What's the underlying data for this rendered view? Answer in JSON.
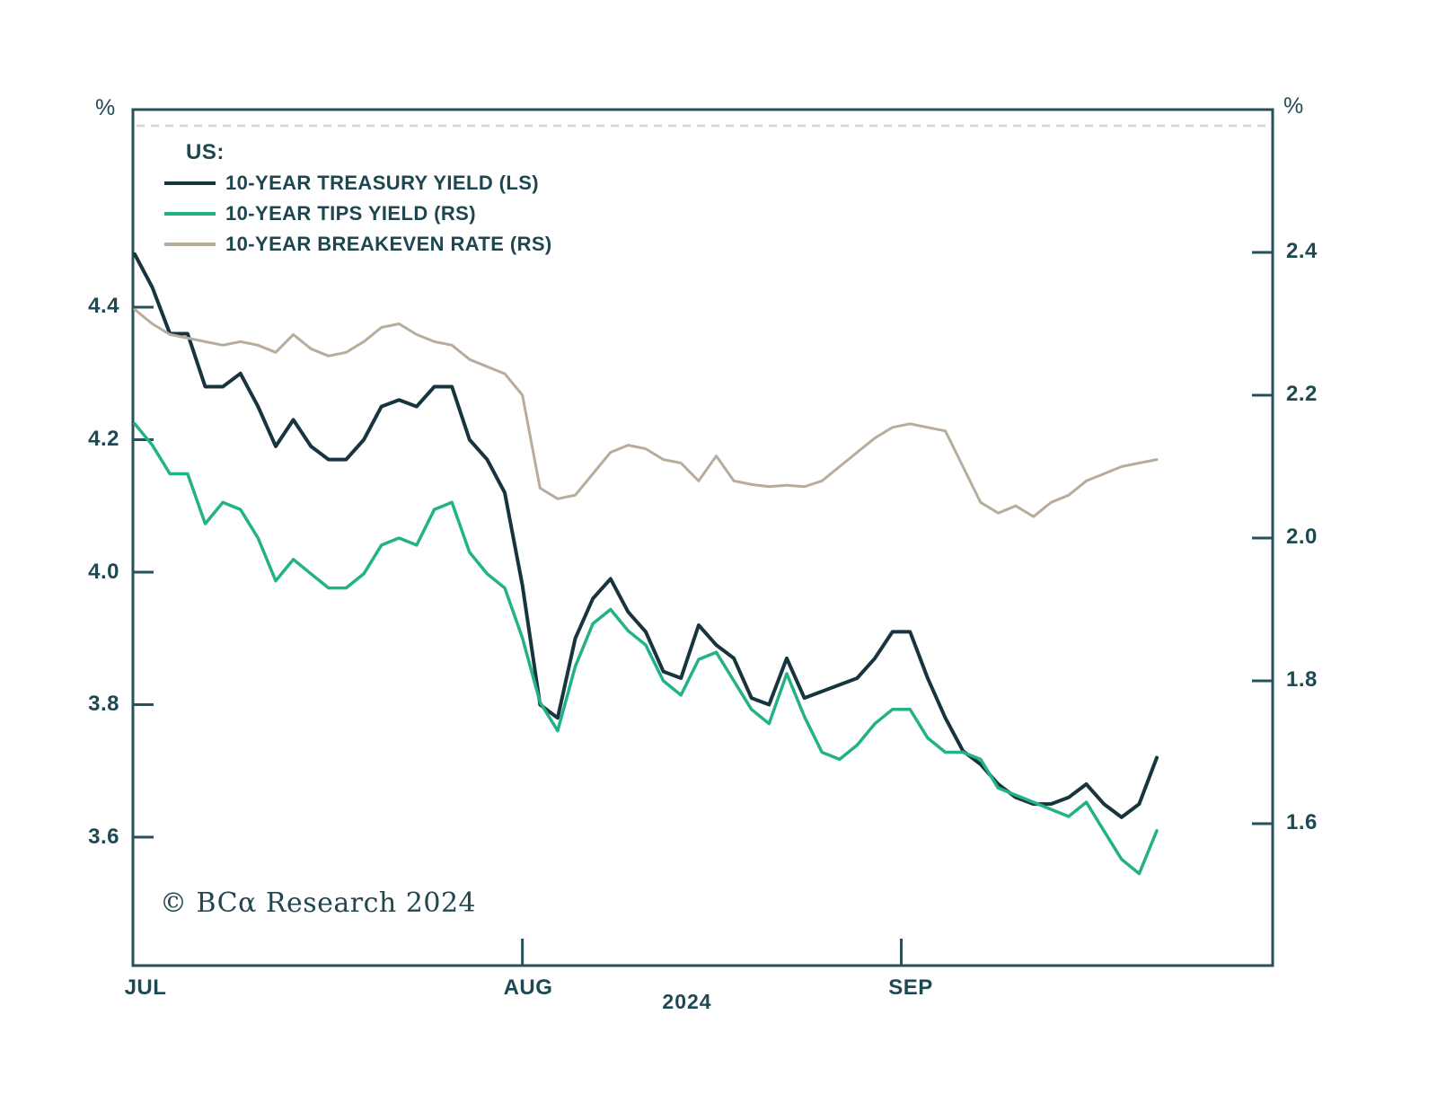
{
  "page": {
    "watermark": "© BCα Research 2024",
    "year_label": "2024",
    "percent_left": "%",
    "percent_right": "%"
  },
  "legend": {
    "title": "US:",
    "items": [
      {
        "label": "10-YEAR TREASURY YIELD (LS)",
        "color": "#18353f"
      },
      {
        "label": "10-YEAR TIPS YIELD (RS)",
        "color": "#23b287"
      },
      {
        "label": "10-YEAR BREAKEVEN RATE (RS)",
        "color": "#b8ac9d"
      }
    ]
  },
  "chart_data": {
    "type": "line",
    "title": "",
    "x_axis": {
      "tick_labels": [
        "JUL",
        "AUG",
        "SEP"
      ],
      "year": "2024",
      "month_start_indices": [
        0,
        22,
        44
      ],
      "month_tick_indices": [
        22,
        43.5
      ]
    },
    "y_left": {
      "unit": "%",
      "tick_labels": [
        "4.4",
        "4.2",
        "4.0",
        "3.8",
        "3.6"
      ],
      "ticks": [
        4.4,
        4.2,
        4.0,
        3.8,
        3.6
      ],
      "range": [
        3.45,
        4.7
      ]
    },
    "y_right": {
      "unit": "%",
      "tick_labels": [
        "2.4",
        "2.2",
        "2.0",
        "1.8",
        "1.6"
      ],
      "ticks": [
        2.4,
        2.2,
        2.0,
        1.8,
        1.6
      ],
      "range": [
        1.42,
        2.6
      ]
    },
    "grid": "off",
    "legend_position": "top-left-inside",
    "series": [
      {
        "name": "10-YEAR TREASURY YIELD",
        "axis": "left",
        "color": "#18353f",
        "stroke_width": 4,
        "values": [
          4.48,
          4.43,
          4.36,
          4.36,
          4.28,
          4.28,
          4.3,
          4.25,
          4.19,
          4.23,
          4.19,
          4.17,
          4.17,
          4.2,
          4.25,
          4.26,
          4.25,
          4.28,
          4.28,
          4.2,
          4.17,
          4.12,
          3.98,
          3.8,
          3.78,
          3.9,
          3.96,
          3.99,
          3.94,
          3.91,
          3.85,
          3.84,
          3.92,
          3.89,
          3.87,
          3.81,
          3.8,
          3.87,
          3.81,
          3.82,
          3.83,
          3.84,
          3.87,
          3.91,
          3.91,
          3.84,
          3.78,
          3.73,
          3.71,
          3.68,
          3.66,
          3.65,
          3.65,
          3.66,
          3.68,
          3.65,
          3.63,
          3.65,
          3.72
        ]
      },
      {
        "name": "10-YEAR TIPS YIELD",
        "axis": "right",
        "color": "#23b287",
        "stroke_width": 3.5,
        "values": [
          2.16,
          2.13,
          2.09,
          2.09,
          2.02,
          2.05,
          2.04,
          2.0,
          1.94,
          1.97,
          1.95,
          1.93,
          1.93,
          1.95,
          1.99,
          2.0,
          1.99,
          2.04,
          2.05,
          1.98,
          1.95,
          1.93,
          1.86,
          1.77,
          1.73,
          1.82,
          1.88,
          1.9,
          1.87,
          1.85,
          1.8,
          1.78,
          1.83,
          1.84,
          1.8,
          1.76,
          1.74,
          1.81,
          1.75,
          1.7,
          1.69,
          1.71,
          1.74,
          1.76,
          1.76,
          1.72,
          1.7,
          1.7,
          1.69,
          1.65,
          1.64,
          1.63,
          1.62,
          1.61,
          1.63,
          1.59,
          1.55,
          1.53,
          1.59
        ]
      },
      {
        "name": "10-YEAR BREAKEVEN RATE",
        "axis": "right",
        "color": "#b8ac9d",
        "stroke_width": 3,
        "values": [
          2.32,
          2.3,
          2.285,
          2.28,
          2.275,
          2.27,
          2.275,
          2.27,
          2.26,
          2.285,
          2.265,
          2.255,
          2.26,
          2.275,
          2.295,
          2.3,
          2.285,
          2.275,
          2.27,
          2.25,
          2.24,
          2.23,
          2.2,
          2.07,
          2.055,
          2.06,
          2.09,
          2.12,
          2.13,
          2.125,
          2.11,
          2.105,
          2.08,
          2.115,
          2.08,
          2.075,
          2.072,
          2.074,
          2.072,
          2.08,
          2.1,
          2.12,
          2.14,
          2.155,
          2.16,
          2.155,
          2.15,
          2.1,
          2.05,
          2.035,
          2.045,
          2.03,
          2.05,
          2.06,
          2.08,
          2.09,
          2.1,
          2.105,
          2.11
        ]
      }
    ]
  }
}
